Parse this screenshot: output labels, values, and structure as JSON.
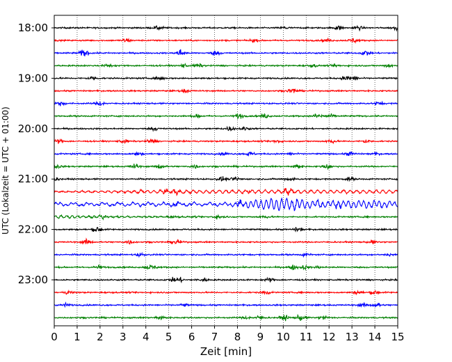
{
  "chart_data": {
    "type": "line",
    "title": "",
    "xlabel": "Zeit  [min]",
    "ylabel": "UTC (Lokalzeit = UTC + 01:00)",
    "xlim": [
      0,
      15
    ],
    "x_ticks": [
      0,
      1,
      2,
      3,
      4,
      5,
      6,
      7,
      8,
      9,
      10,
      11,
      12,
      13,
      14,
      15
    ],
    "y_ticks": [
      "18:00",
      "19:00",
      "20:00",
      "21:00",
      "22:00",
      "23:00"
    ],
    "grid": "vertical dotted at each minute",
    "trace_colors": [
      "#000000",
      "#ff0000",
      "#0000ff",
      "#008000"
    ],
    "trace_count": 24,
    "trace_minutes": 15,
    "first_trace": "18:00",
    "notes": "Seismogram helicorder: one 15-minute trace per row, colours cycle black/red/blue/green; larger wave train on the 21:30 trace between ~7.5 and 11 min"
  }
}
